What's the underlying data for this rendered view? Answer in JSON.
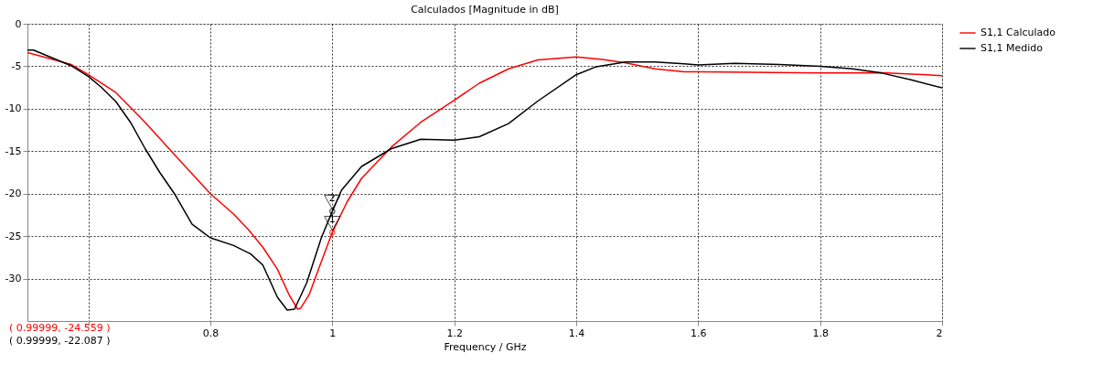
{
  "chart_data": {
    "type": "line",
    "title": "Calculados [Magnitude in dB]",
    "xlabel": "Frequency / GHz",
    "xlim": [
      0.5,
      2.0
    ],
    "xticks": [
      {
        "value": 0.6,
        "label": null
      },
      0.8,
      1,
      1.2,
      1.4,
      1.6,
      1.8,
      2
    ],
    "ylim": [
      -35,
      0
    ],
    "yticks": [
      0,
      -5,
      -10,
      -15,
      -20,
      -25,
      -30
    ],
    "grid": true,
    "legend": "top right",
    "line_style": "solid",
    "series": [
      {
        "name": "S1,1 Calculado",
        "color": "#ff0000",
        "x": [
          0.5,
          0.572,
          0.6,
          0.645,
          0.669,
          0.693,
          0.741,
          0.8,
          0.838,
          0.862,
          0.886,
          0.91,
          0.929,
          0.943,
          0.948,
          0.962,
          0.982,
          1.0,
          1.024,
          1.048,
          1.097,
          1.145,
          1.2,
          1.241,
          1.289,
          1.337,
          1.4,
          1.443,
          1.481,
          1.529,
          1.577,
          1.6,
          1.8,
          1.901,
          2.0
        ],
        "values": [
          -3.4,
          -4.8,
          -6.0,
          -8.1,
          -9.85,
          -11.6,
          -15.4,
          -20.0,
          -22.4,
          -24.2,
          -26.3,
          -28.9,
          -31.9,
          -33.6,
          -33.5,
          -31.9,
          -28.0,
          -24.56,
          -21.0,
          -18.2,
          -14.5,
          -11.6,
          -9.0,
          -7.0,
          -5.3,
          -4.25,
          -3.9,
          -4.2,
          -4.6,
          -5.3,
          -5.65,
          -5.65,
          -5.8,
          -5.75,
          -6.1
        ]
      },
      {
        "name": "S1,1 Medido",
        "color": "#000000",
        "x": [
          0.5,
          0.51,
          0.572,
          0.6,
          0.62,
          0.645,
          0.669,
          0.693,
          0.717,
          0.741,
          0.77,
          0.8,
          0.838,
          0.866,
          0.886,
          0.91,
          0.926,
          0.938,
          0.958,
          0.982,
          1.0,
          1.015,
          1.048,
          1.097,
          1.145,
          1.2,
          1.241,
          1.289,
          1.337,
          1.4,
          1.433,
          1.481,
          1.529,
          1.577,
          1.6,
          1.66,
          1.733,
          1.8,
          1.853,
          1.901,
          1.949,
          2.0
        ],
        "values": [
          -3.1,
          -3.1,
          -4.95,
          -6.2,
          -7.4,
          -9.15,
          -11.6,
          -14.7,
          -17.5,
          -20.0,
          -23.6,
          -25.2,
          -26.1,
          -27.1,
          -28.4,
          -32.2,
          -33.7,
          -33.6,
          -30.5,
          -25.2,
          -22.09,
          -19.6,
          -16.8,
          -14.7,
          -13.6,
          -13.7,
          -13.3,
          -11.75,
          -9.1,
          -6.0,
          -5.05,
          -4.5,
          -4.5,
          -4.7,
          -4.85,
          -4.67,
          -4.78,
          -5.0,
          -5.3,
          -5.8,
          -6.6,
          -7.55
        ]
      }
    ],
    "annotations": [
      {
        "text": "1",
        "x": 0.99999,
        "y": -24.559
      },
      {
        "text": "2",
        "x": 0.99999,
        "y": -22.087
      },
      "( 0.99999, -24.559 )",
      "( 0.99999, -22.087 )"
    ]
  }
}
